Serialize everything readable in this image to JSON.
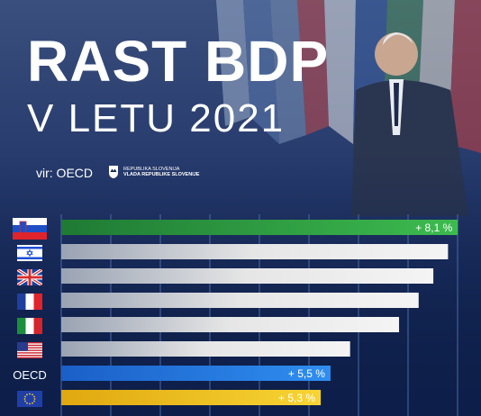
{
  "header": {
    "title": "RAST BDP",
    "subtitle": "V LETU 2021",
    "source": "vir: OECD",
    "gov_logo_line1": "REPUBLIKA SLOVENIJA",
    "gov_logo_line2": "VLADA REPUBLIKE SLOVENIJE"
  },
  "chart_data": {
    "type": "bar",
    "orientation": "horizontal",
    "categories": [
      "slovenia-flag",
      "israel-flag",
      "uk-flag",
      "france-flag",
      "italy-flag",
      "usa-flag",
      "OECD",
      "eu-flag"
    ],
    "values": [
      8.1,
      7.9,
      7.6,
      7.3,
      6.9,
      5.9,
      5.5,
      5.3
    ],
    "value_labels": [
      "+ 8,1 %",
      "",
      "",
      "",
      "",
      "",
      "+ 5,5 %",
      "+ 5,3 %"
    ],
    "xlim": [
      0,
      8.5
    ],
    "grid": true,
    "colors": {
      "slovenia": "#2f9e3f",
      "default": "#d9d9d9",
      "oecd": "#1f78e0",
      "eu": "#f2c21a",
      "grid": "#4a6aa8"
    }
  }
}
